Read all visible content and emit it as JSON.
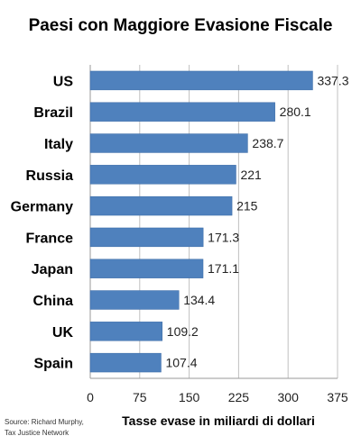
{
  "chart_data": {
    "type": "bar",
    "orientation": "horizontal",
    "title": "Paesi con Maggiore Evasione Fiscale",
    "categories": [
      "US",
      "Brazil",
      "Italy",
      "Russia",
      "Germany",
      "France",
      "Japan",
      "China",
      "UK",
      "Spain"
    ],
    "values": [
      337.3,
      280.1,
      238.7,
      221,
      215,
      171.3,
      171.1,
      134.4,
      109.2,
      107.4
    ],
    "value_labels": [
      "337.3",
      "280.1",
      "238.7",
      "221",
      "215",
      "171.3",
      "171.1",
      "134.4",
      "109.2",
      "107.4"
    ],
    "xlabel": "Tasse evase in miliardi di dollari",
    "ylabel": "",
    "xlim": [
      0,
      375
    ],
    "xticks": [
      0,
      75,
      150,
      225,
      300,
      375
    ],
    "grid": "vertical",
    "bar_color": "#4f81bd",
    "grid_color": "#c0c0c0"
  },
  "source_lines": [
    "Source: Richard Murphy,",
    "Tax Justice Network"
  ]
}
